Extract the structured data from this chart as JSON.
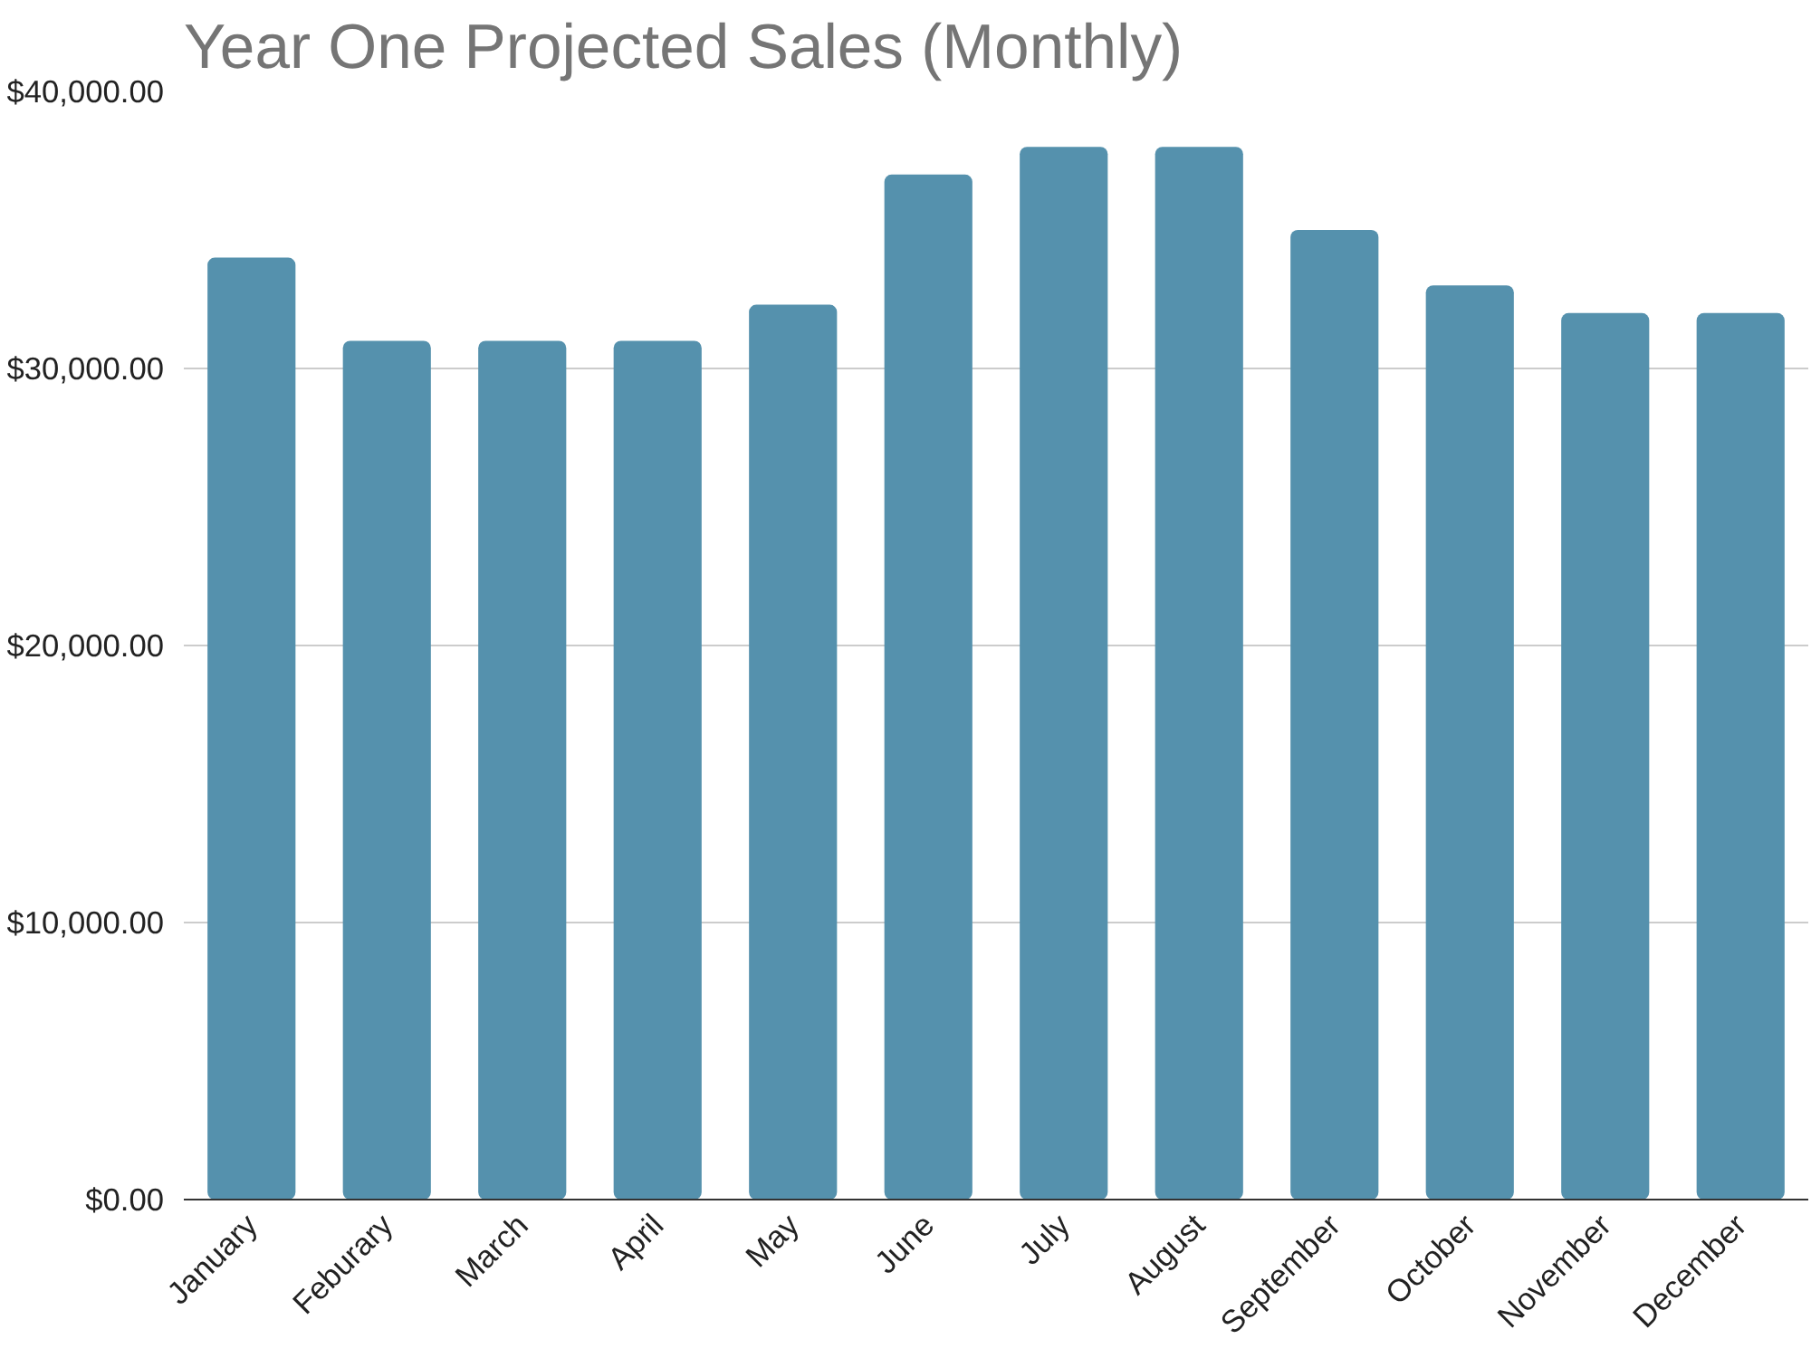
{
  "chart_data": {
    "type": "bar",
    "title": "Year One Projected Sales (Monthly)",
    "categories": [
      "January",
      "Feburary",
      "March",
      "April",
      "May",
      "June",
      "July",
      "August",
      "September",
      "October",
      "November",
      "December"
    ],
    "values": [
      34000,
      31000,
      31000,
      31000,
      32300,
      37000,
      38000,
      38000,
      35000,
      33000,
      32000,
      32000
    ],
    "color": "#5591ad",
    "ylim": [
      0,
      40000
    ],
    "yticks": [
      {
        "value": 0,
        "label": "$0.00"
      },
      {
        "value": 10000,
        "label": "$10,000.00"
      },
      {
        "value": 20000,
        "label": "$20,000.00"
      },
      {
        "value": 30000,
        "label": "$30,000.00"
      },
      {
        "value": 40000,
        "label": "$40,000.00"
      }
    ],
    "grid": "y"
  }
}
